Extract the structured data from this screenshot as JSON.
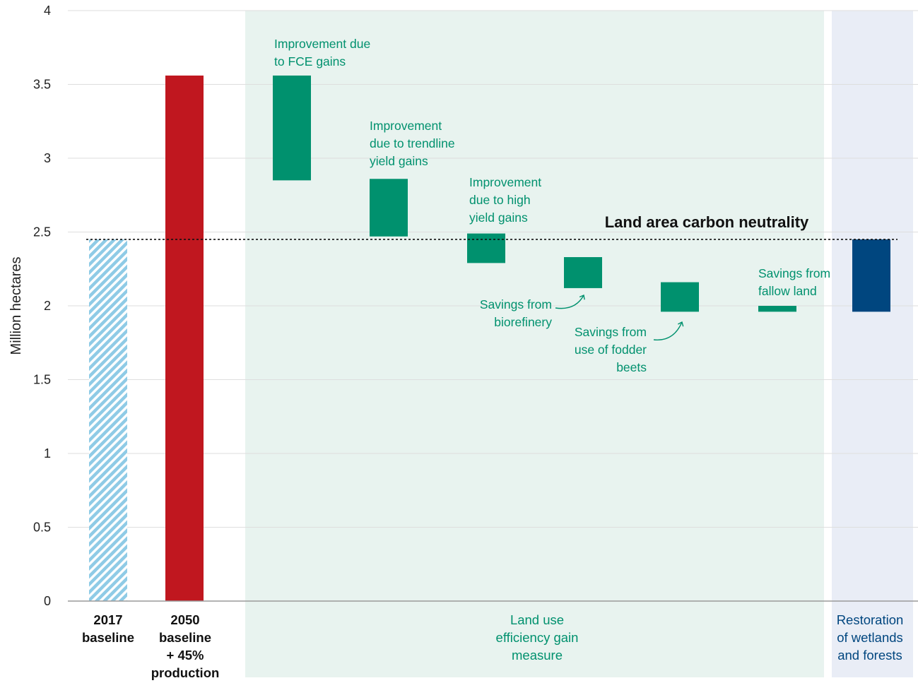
{
  "chart_data": {
    "type": "bar",
    "variant": "waterfall",
    "ylabel": "Million hectares",
    "ylim": [
      0,
      4
    ],
    "yticks": [
      {
        "value": 0,
        "label": "0"
      },
      {
        "value": 0.5,
        "label": "0.5"
      },
      {
        "value": 1,
        "label": "1"
      },
      {
        "value": 1.5,
        "label": "1.5"
      },
      {
        "value": 2,
        "label": "2"
      },
      {
        "value": 2.5,
        "label": "2.5"
      },
      {
        "value": 3,
        "label": "3"
      },
      {
        "value": 3.5,
        "label": "3.5"
      },
      {
        "value": 4,
        "label": "4"
      }
    ],
    "grid": true,
    "reference_line": {
      "value": 2.45,
      "label": "Land area carbon neutrality",
      "style": "dotted"
    },
    "bars": [
      {
        "name": "2017 baseline",
        "start": 0,
        "end": 2.45,
        "color": "#8fcbe6",
        "pattern": "hatched",
        "annotation": []
      },
      {
        "name": "2050 baseline + 45% production",
        "start": 0,
        "end": 3.56,
        "color": "#c0171f",
        "annotation": []
      },
      {
        "name": "Improvement due to FCE gains",
        "start": 2.85,
        "end": 3.56,
        "color": "#00916e",
        "annotation": [
          "Improvement due",
          "to FCE gains"
        ]
      },
      {
        "name": "Improvement due to trendline yield gains",
        "start": 2.47,
        "end": 2.86,
        "color": "#00916e",
        "annotation": [
          "Improvement",
          "due to trendline",
          "yield gains"
        ]
      },
      {
        "name": "Improvement due to high yield gains",
        "start": 2.29,
        "end": 2.49,
        "color": "#00916e",
        "annotation": [
          "Improvement",
          "due to high",
          "yield gains"
        ]
      },
      {
        "name": "Savings from biorefinery",
        "start": 2.12,
        "end": 2.33,
        "color": "#00916e",
        "annotation": [
          "Savings from",
          "biorefinery"
        ]
      },
      {
        "name": "Savings from use of fodder beets",
        "start": 1.96,
        "end": 2.16,
        "color": "#00916e",
        "annotation": [
          "Savings from",
          "use of fodder",
          "beets"
        ]
      },
      {
        "name": "Savings from fallow land",
        "start": 1.96,
        "end": 2.0,
        "color": "#00916e",
        "annotation": [
          "Savings from",
          "fallow land"
        ]
      },
      {
        "name": "Restoration of wetlands and forests",
        "start": 1.96,
        "end": 2.45,
        "color": "#00467f",
        "annotation": []
      }
    ],
    "groups": [
      {
        "label": [
          "2017",
          "baseline"
        ],
        "color": "#111111",
        "background": "none"
      },
      {
        "label": [
          "2050",
          "baseline",
          "+ 45%",
          "production"
        ],
        "color": "#111111",
        "background": "none"
      },
      {
        "label": [
          "Land use",
          "efficiency gain",
          "measure"
        ],
        "color": "#00916e",
        "background": "#e8f3ef"
      },
      {
        "label": [
          "Restoration",
          "of wetlands",
          "and forests"
        ],
        "color": "#00467f",
        "background": "#e9edf6"
      }
    ]
  }
}
